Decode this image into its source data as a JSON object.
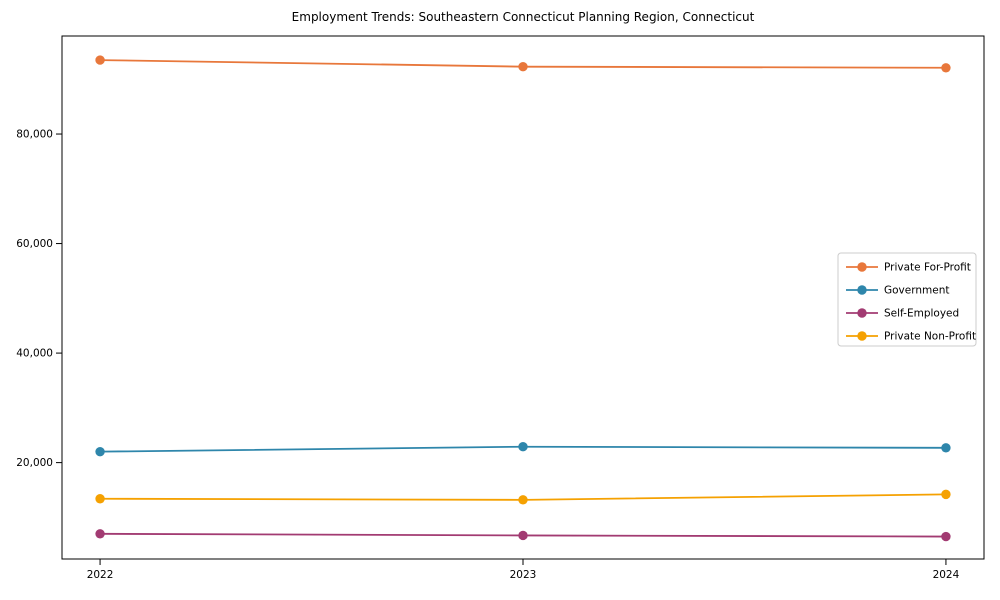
{
  "chart_data": {
    "type": "line",
    "title": "Employment Trends: Southeastern Connecticut Planning Region, Connecticut",
    "xlabel": "",
    "ylabel": "",
    "x": [
      2022,
      2023,
      2024
    ],
    "x_tick_labels": [
      "2022",
      "2023",
      "2024"
    ],
    "series": [
      {
        "name": "Private For-Profit",
        "color": "#E8773B",
        "values": [
          93500,
          92300,
          92100
        ]
      },
      {
        "name": "Government",
        "color": "#2E86AB",
        "values": [
          22000,
          22900,
          22700
        ]
      },
      {
        "name": "Self-Employed",
        "color": "#A23B72",
        "values": [
          7000,
          6700,
          6500
        ]
      },
      {
        "name": "Private Non-Profit",
        "color": "#F5A101",
        "values": [
          13400,
          13200,
          14200
        ]
      }
    ],
    "xlim": [
      2021.91,
      2024.09
    ],
    "ylim": [
      2400,
      97900
    ],
    "yticks": [
      20000,
      40000,
      60000,
      80000
    ],
    "ytick_labels": [
      "20,000",
      "40,000",
      "60,000",
      "80,000"
    ],
    "grid": false,
    "marker": "circle",
    "legend": {
      "position": "right-center",
      "entries": [
        "Private For-Profit",
        "Government",
        "Self-Employed",
        "Private Non-Profit"
      ],
      "border_color": "#cccccc"
    },
    "axis_color": "#000000"
  }
}
